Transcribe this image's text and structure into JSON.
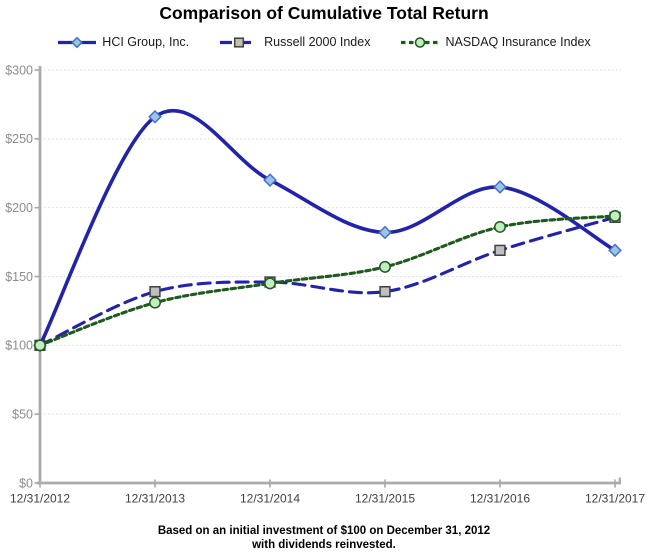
{
  "title": "Comparison of Cumulative Total Return",
  "footnote": {
    "line1": "Based on an initial investment of $100 on December 31, 2012",
    "line2": "with dividends reinvested."
  },
  "chart_data": {
    "type": "line",
    "title": "Comparison of Cumulative Total Return",
    "x_labels": [
      "12/31/2012",
      "12/31/2013",
      "12/31/2014",
      "12/31/2015",
      "12/31/2016",
      "12/31/2017"
    ],
    "y_tick_labels": [
      "$0",
      "$50",
      "$100",
      "$150",
      "$200",
      "$250",
      "$300"
    ],
    "ylim": [
      0,
      300
    ],
    "y_step": 50,
    "grid": "horizontal-dotted",
    "legend_position": "top",
    "series": [
      {
        "name": "HCI Group, Inc.",
        "values": [
          100,
          266,
          220,
          182,
          215,
          169
        ],
        "line_color": "#2323A8",
        "line_style": "solid",
        "line_width": 3.6,
        "smooth": true,
        "marker": "diamond",
        "marker_fill": "#9DC3E6",
        "marker_stroke": "#4472C4"
      },
      {
        "name": "Russell 2000 Index",
        "values": [
          100,
          139,
          146,
          139,
          169,
          193
        ],
        "line_color": "#2323A8",
        "line_style": "long-dash",
        "line_width": 3.1,
        "smooth": true,
        "marker": "square",
        "marker_fill": "#BFBFBF",
        "marker_stroke": "#404040"
      },
      {
        "name": "NASDAQ Insurance Index",
        "values": [
          100,
          131,
          145,
          157,
          186,
          194
        ],
        "line_color": "#1E5A1E",
        "line_style": "short-dash",
        "line_width": 3.1,
        "smooth": true,
        "marker": "circle",
        "marker_fill": "#C2ECC2",
        "marker_stroke": "#1E5A1E"
      }
    ]
  },
  "colors": {
    "axis_line": "#ABABAB",
    "gridline": "#D9D9D9",
    "y_tick_label": "#8C8C8C",
    "x_tick_label": "#404040",
    "title_text": "#000000"
  }
}
